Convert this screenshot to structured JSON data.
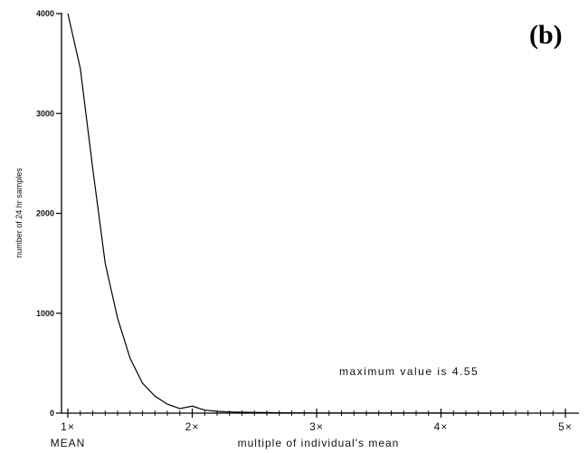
{
  "chart_data": {
    "type": "line",
    "panel_label": "(b)",
    "ylabel": "number of 24 hr samples",
    "xlabel": "multiple of individual's mean",
    "xlabel_secondary": "MEAN",
    "annotation": "maximum value is 4.55",
    "xlim": [
      1,
      5
    ],
    "ylim": [
      0,
      4000
    ],
    "x_ticks": [
      {
        "value": 1,
        "label": "1×"
      },
      {
        "value": 2,
        "label": "2×"
      },
      {
        "value": 3,
        "label": "3×"
      },
      {
        "value": 4,
        "label": "4×"
      },
      {
        "value": 5,
        "label": "5×"
      }
    ],
    "y_ticks": [
      {
        "value": 0,
        "label": "0"
      },
      {
        "value": 1000,
        "label": "1000"
      },
      {
        "value": 2000,
        "label": "2000"
      },
      {
        "value": 3000,
        "label": "3000"
      },
      {
        "value": 4000,
        "label": "4000"
      }
    ],
    "grid": false,
    "series": [
      {
        "x": [
          1.0,
          1.1,
          1.2,
          1.3,
          1.4,
          1.5,
          1.6,
          1.7,
          1.8,
          1.9,
          2.0,
          2.1,
          2.2,
          2.3,
          2.4,
          2.5,
          2.6,
          2.7,
          2.8,
          2.9,
          3.0,
          3.2,
          3.4,
          3.6,
          3.8,
          4.0,
          4.2,
          4.4,
          4.55
        ],
        "y": [
          4000,
          3450,
          2450,
          1500,
          950,
          550,
          300,
          170,
          90,
          45,
          70,
          30,
          18,
          12,
          9,
          7,
          5,
          4,
          3,
          3,
          2,
          2,
          1,
          1,
          1,
          1,
          0,
          0,
          0
        ],
        "color": "#000000"
      }
    ]
  }
}
